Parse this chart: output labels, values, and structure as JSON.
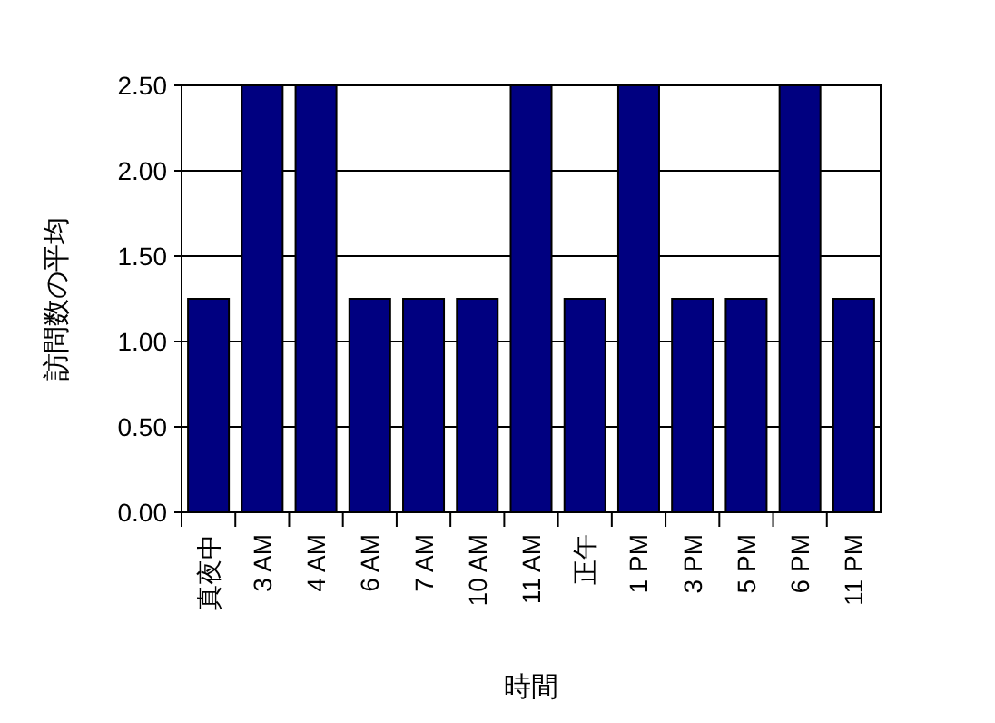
{
  "chart_data": {
    "type": "bar",
    "xlabel": "時間",
    "ylabel": "訪問数の平均",
    "categories": [
      "真夜中",
      "3 AM",
      "4 AM",
      "6 AM",
      "7 AM",
      "10 AM",
      "11 AM",
      "正午",
      "1 PM",
      "3 PM",
      "5 PM",
      "6 PM",
      "11 PM"
    ],
    "values": [
      1.25,
      2.5,
      2.5,
      1.25,
      1.25,
      1.25,
      2.5,
      1.25,
      2.5,
      1.25,
      1.25,
      2.5,
      1.25
    ],
    "color": "#000080",
    "ylim": [
      0,
      2.5
    ],
    "yticks": [
      {
        "value": 0,
        "label": "0.00"
      },
      {
        "value": 0.5,
        "label": "0.50"
      },
      {
        "value": 1,
        "label": "1.00"
      },
      {
        "value": 1.5,
        "label": "1.50"
      },
      {
        "value": 2,
        "label": "2.00"
      },
      {
        "value": 2.5,
        "label": "2.50"
      }
    ],
    "grid": "y"
  }
}
